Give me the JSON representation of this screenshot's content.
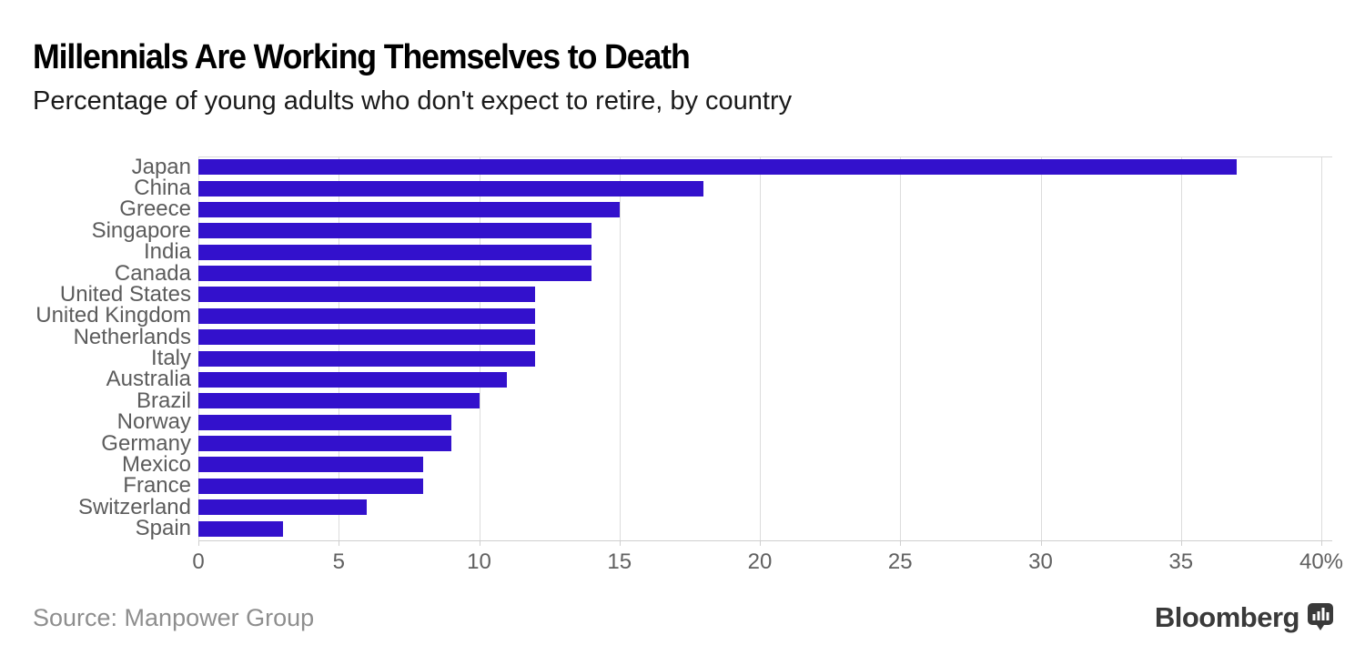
{
  "header": {
    "title": "Millennials Are Working Themselves to Death",
    "subtitle": "Percentage of young adults who don't expect to retire, by country"
  },
  "chart_data": {
    "type": "bar",
    "orientation": "horizontal",
    "title": "Millennials Are Working Themselves to Death",
    "subtitle": "Percentage of young adults who don't expect to retire, by country",
    "categories": [
      "Japan",
      "China",
      "Greece",
      "Singapore",
      "India",
      "Canada",
      "United States",
      "United Kingdom",
      "Netherlands",
      "Italy",
      "Australia",
      "Brazil",
      "Norway",
      "Germany",
      "Mexico",
      "France",
      "Switzerland",
      "Spain"
    ],
    "values": [
      37,
      18,
      15,
      14,
      14,
      14,
      12,
      12,
      12,
      12,
      11,
      10,
      9,
      9,
      8,
      8,
      6,
      3
    ],
    "unit": "%",
    "xlabel": "",
    "ylabel": "",
    "xlim": [
      0,
      40
    ],
    "x_ticks": [
      0,
      5,
      10,
      15,
      20,
      25,
      30,
      35,
      40
    ],
    "x_tick_labels": [
      "0",
      "5",
      "10",
      "15",
      "20",
      "25",
      "30",
      "35",
      "40%"
    ],
    "grid": true,
    "legend": false,
    "bar_color": "#3311cc"
  },
  "footer": {
    "source": "Source: Manpower Group",
    "brand": "Bloomberg",
    "brand_icon": "bar-chart-speech-bubble"
  },
  "colors": {
    "bar": "#3311cc",
    "grid": "#dcdcdc",
    "axis": "#cfcfcf",
    "title": "#000000",
    "subtitle": "#1a1a1a",
    "country_label": "#5c5c5c",
    "tick_label": "#606060",
    "source": "#8e8e8e",
    "brand": "#3a3a3a",
    "background": "#ffffff"
  }
}
